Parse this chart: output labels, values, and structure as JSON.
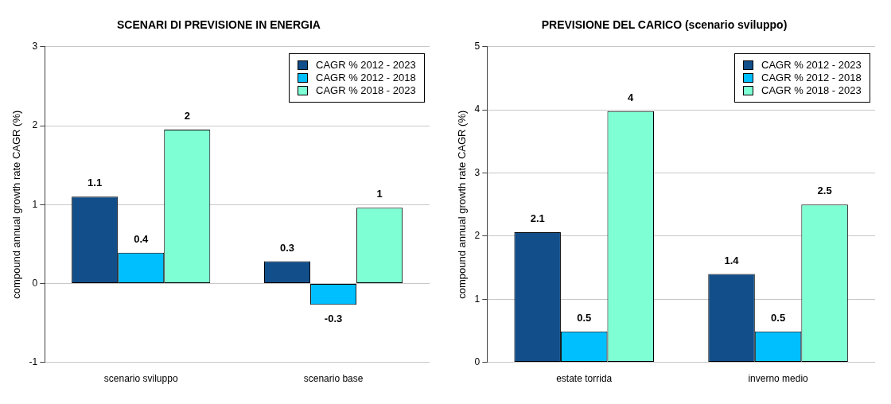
{
  "chart_data": [
    {
      "type": "bar",
      "title": "SCENARI DI PREVISIONE IN ENERGIA",
      "ylabel": "compound annual growth rate CAGR (%)",
      "categories": [
        "scenario sviluppo",
        "scenario base"
      ],
      "ylim": [
        -1,
        3
      ],
      "yticks": [
        -1,
        0,
        1,
        2,
        3
      ],
      "grid": "y",
      "legend": "top right",
      "series": [
        {
          "name": "CAGR % 2012 - 2023",
          "color": "#114e8a",
          "values": [
            1.1,
            0.28
          ],
          "value_labels": [
            "1.1",
            "0.3"
          ]
        },
        {
          "name": "CAGR % 2012 - 2018",
          "color": "#00bfff",
          "values": [
            0.39,
            -0.27
          ],
          "value_labels": [
            "0.4",
            "-0.3"
          ]
        },
        {
          "name": "CAGR % 2018 - 2023",
          "color": "#7fffd4",
          "values": [
            1.95,
            0.96
          ],
          "value_labels": [
            "2",
            "1"
          ]
        }
      ]
    },
    {
      "type": "bar",
      "title": "PREVISIONE DEL CARICO (scenario sviluppo)",
      "ylabel": "compound annual growth rate CAGR (%)",
      "categories": [
        "estate torrida",
        "inverno medio"
      ],
      "ylim": [
        0,
        5
      ],
      "yticks": [
        0,
        1,
        2,
        3,
        4,
        5
      ],
      "grid": "y",
      "legend": "top right",
      "series": [
        {
          "name": "CAGR % 2012 - 2023",
          "color": "#114e8a",
          "values": [
            2.06,
            1.4
          ],
          "value_labels": [
            "2.1",
            "1.4"
          ]
        },
        {
          "name": "CAGR % 2012 - 2018",
          "color": "#00bfff",
          "values": [
            0.49,
            0.49
          ],
          "value_labels": [
            "0.5",
            "0.5"
          ]
        },
        {
          "name": "CAGR % 2018 - 2023",
          "color": "#7fffd4",
          "values": [
            3.98,
            2.5
          ],
          "value_labels": [
            "4",
            "2.5"
          ]
        }
      ]
    }
  ]
}
